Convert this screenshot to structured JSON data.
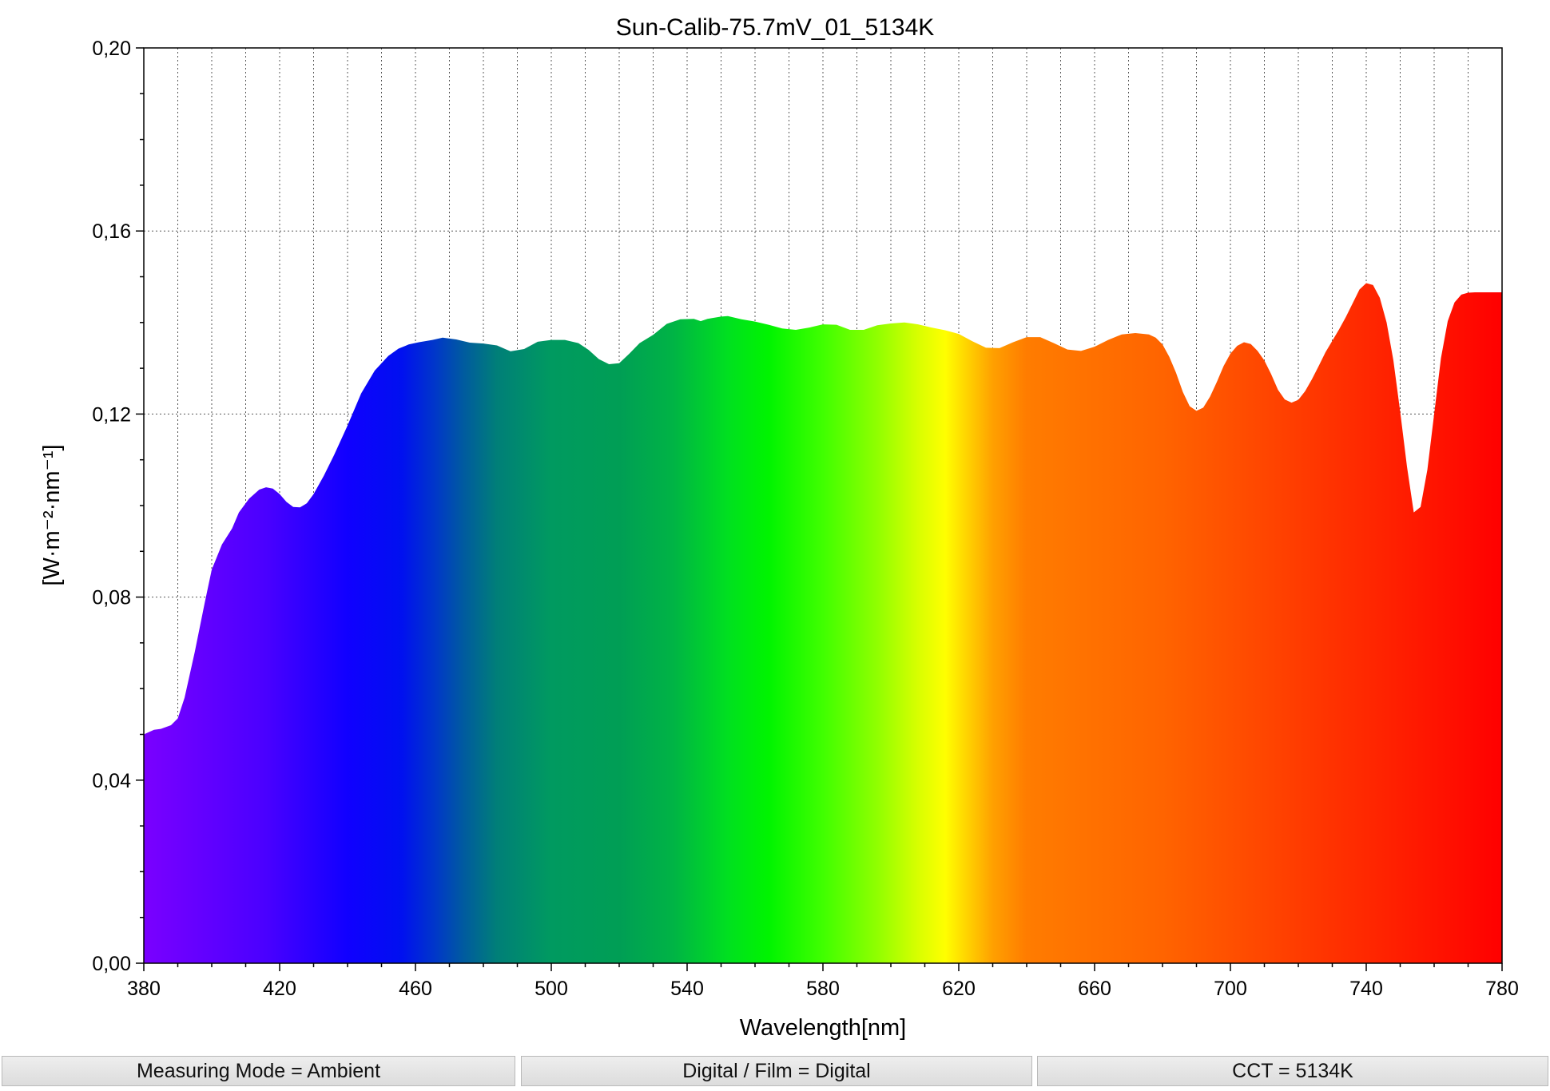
{
  "chart_data": {
    "type": "area",
    "title": "Sun-Calib-75.7mV_01_5134K",
    "xlabel": "Wavelength[nm]",
    "ylabel": "[W·m⁻²·nm⁻¹]",
    "xlim": [
      380,
      780
    ],
    "ylim": [
      0.0,
      0.2
    ],
    "x_ticks": [
      380,
      420,
      460,
      500,
      540,
      580,
      620,
      660,
      700,
      740,
      780
    ],
    "y_ticks": [
      "0,00",
      "0,04",
      "0,08",
      "0,12",
      "0,16",
      "0,20"
    ],
    "grid": true,
    "fill": "visible-spectrum-gradient",
    "series": [
      {
        "x": [
          380,
          383,
          385,
          388,
          390,
          392,
          395,
          398,
          400,
          403,
          406,
          408,
          411,
          414,
          416,
          418,
          420,
          422,
          424,
          426,
          428,
          430,
          433,
          436,
          440,
          444,
          448,
          452,
          455,
          458,
          461,
          465,
          468,
          472,
          476,
          480,
          484,
          488,
          492,
          496,
          500,
          504,
          508,
          511,
          514,
          517,
          520,
          523,
          526,
          530,
          534,
          538,
          542,
          544,
          546,
          550,
          552,
          556,
          560,
          564,
          568,
          572,
          576,
          580,
          584,
          588,
          592,
          596,
          600,
          604,
          608,
          612,
          616,
          620,
          624,
          628,
          632,
          636,
          640,
          644,
          648,
          652,
          656,
          660,
          664,
          668,
          672,
          676,
          678,
          680,
          682,
          684,
          686,
          688,
          690,
          692,
          694,
          696,
          698,
          700,
          702,
          704,
          706,
          708,
          710,
          712,
          714,
          716,
          718,
          720,
          722,
          724,
          726,
          728,
          730,
          732,
          734,
          736,
          738,
          740,
          742,
          744,
          746,
          748,
          750,
          752,
          754,
          756,
          758,
          760,
          762,
          764,
          766,
          768,
          770,
          772,
          774,
          776,
          778,
          780
        ],
        "y": [
          0.05,
          0.051,
          0.0512,
          0.052,
          0.0535,
          0.058,
          0.068,
          0.079,
          0.086,
          0.0915,
          0.095,
          0.0985,
          0.1015,
          0.1035,
          0.104,
          0.1037,
          0.1025,
          0.1008,
          0.0997,
          0.0996,
          0.1005,
          0.1025,
          0.1065,
          0.111,
          0.1175,
          0.1245,
          0.1295,
          0.1327,
          0.1343,
          0.1352,
          0.1357,
          0.1362,
          0.1367,
          0.1363,
          0.1356,
          0.1354,
          0.135,
          0.1337,
          0.1342,
          0.1358,
          0.1362,
          0.1362,
          0.1355,
          0.134,
          0.132,
          0.1309,
          0.1311,
          0.1332,
          0.1355,
          0.1373,
          0.1397,
          0.1407,
          0.1408,
          0.1403,
          0.1408,
          0.1413,
          0.1414,
          0.1407,
          0.1402,
          0.1395,
          0.1387,
          0.1384,
          0.1389,
          0.1396,
          0.1395,
          0.1384,
          0.1384,
          0.1394,
          0.1398,
          0.14,
          0.1396,
          0.1389,
          0.1383,
          0.1375,
          0.1359,
          0.1345,
          0.1344,
          0.1357,
          0.1368,
          0.1368,
          0.1355,
          0.1341,
          0.1338,
          0.1347,
          0.1362,
          0.1374,
          0.1377,
          0.1374,
          0.1367,
          0.1352,
          0.1325,
          0.129,
          0.1248,
          0.1217,
          0.1207,
          0.1214,
          0.1238,
          0.127,
          0.1305,
          0.1332,
          0.1349,
          0.1357,
          0.1353,
          0.1338,
          0.1317,
          0.1287,
          0.1253,
          0.1232,
          0.1225,
          0.1231,
          0.125,
          0.1276,
          0.1305,
          0.1335,
          0.136,
          0.1385,
          0.1412,
          0.1442,
          0.1472,
          0.1486,
          0.1482,
          0.1454,
          0.14,
          0.1317,
          0.1205,
          0.1085,
          0.0985,
          0.0997,
          0.1078,
          0.12,
          0.1322,
          0.1403,
          0.1444,
          0.1461,
          0.1465,
          0.1466,
          0.1466,
          0.1466,
          0.1466,
          0.1466
        ]
      }
    ]
  },
  "status": [
    {
      "label": "Measuring Mode = Ambient"
    },
    {
      "label": "Digital / Film = Digital"
    },
    {
      "label": "CCT = 5134K"
    }
  ]
}
